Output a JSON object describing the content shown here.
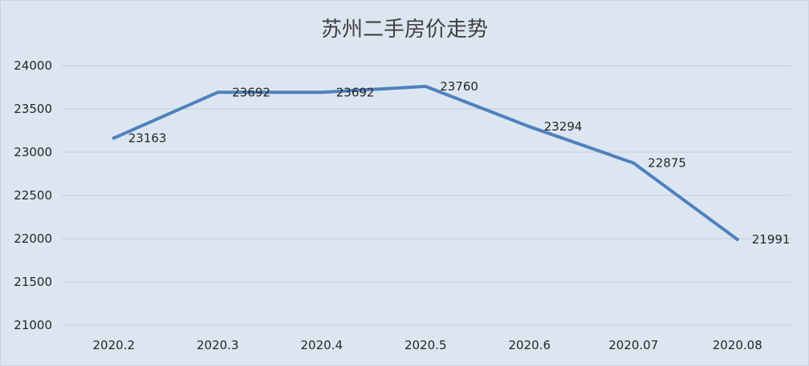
{
  "chart_data": {
    "type": "line",
    "title": "苏州二手房价走势",
    "categories": [
      "2020.2",
      "2020.3",
      "2020.4",
      "2020.5",
      "2020.6",
      "2020.07",
      "2020.08"
    ],
    "series": [
      {
        "values": [
          23163,
          23692,
          23692,
          23760,
          23294,
          22875,
          21991
        ]
      }
    ],
    "data_labels": [
      "23163",
      "23692",
      "23692",
      "23760",
      "23294",
      "22875",
      "21991"
    ],
    "ylim": [
      21000,
      24000
    ],
    "yticks": [
      "21000",
      "21500",
      "22000",
      "22500",
      "23000",
      "23500",
      "24000"
    ],
    "ytick_values": [
      21000,
      21500,
      22000,
      22500,
      23000,
      23500,
      24000
    ],
    "xlabel": "",
    "ylabel": "",
    "grid": true,
    "legend": "none",
    "colors": {
      "line": "#4f81bd",
      "grid": "#c6ccd3",
      "background": "#dce6f1"
    }
  }
}
